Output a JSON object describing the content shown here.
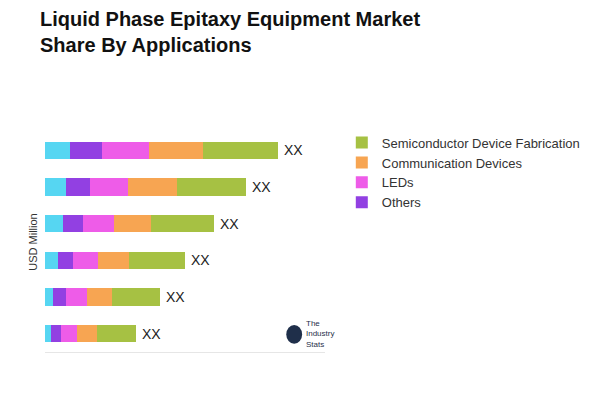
{
  "chart_data": {
    "type": "bar",
    "orientation": "horizontal",
    "stacked": true,
    "title": "Liquid Phase Epitaxy Equipment Market\nShare By Applications",
    "y_label": "USD Million",
    "categories": [
      null,
      null,
      null,
      null,
      null,
      null
    ],
    "series": [
      {
        "name": null,
        "color": "#56d6f2",
        "values": [
          25,
          21,
          18,
          13,
          8,
          6
        ]
      },
      {
        "name": "Others",
        "color": "#9240e2",
        "values": [
          32,
          24,
          20,
          15,
          13,
          10
        ]
      },
      {
        "name": "LEDs",
        "color": "#ee5ce8",
        "values": [
          47,
          38,
          31,
          25,
          21,
          16
        ]
      },
      {
        "name": "Communication Devices",
        "color": "#f7a552",
        "values": [
          54,
          49,
          37,
          31,
          25,
          20
        ]
      },
      {
        "name": "Semiconductor Device Fabrication",
        "color": "#a6c143",
        "values": [
          75,
          69,
          63,
          56,
          48,
          39
        ]
      }
    ],
    "end_labels": [
      "XX",
      "XX",
      "XX",
      "XX",
      "XX",
      "XX"
    ],
    "xlim": [
      0,
      280
    ],
    "xticks": [],
    "tick_labels": false,
    "grid": false,
    "legend": "right",
    "logo_text": "The\nIndustry\nStats"
  }
}
